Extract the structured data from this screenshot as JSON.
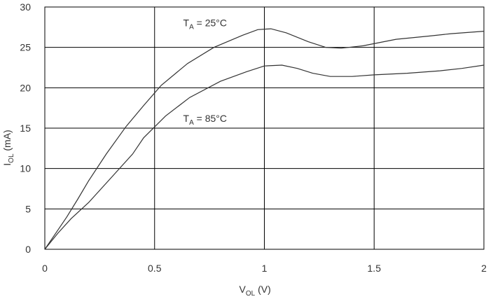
{
  "chart_data": {
    "type": "line",
    "xlabel": {
      "main": "V",
      "sub": "OL",
      "unit": " (V)"
    },
    "ylabel": {
      "main": "I",
      "sub": "OL",
      "unit": " (mA)"
    },
    "xlim": [
      0,
      2
    ],
    "ylim": [
      0,
      30
    ],
    "xticks": [
      0,
      0.5,
      1,
      1.5,
      2
    ],
    "xtick_labels": [
      "0",
      "0.5",
      "1",
      "1.5",
      "2"
    ],
    "yticks": [
      0,
      5,
      10,
      15,
      20,
      25,
      30
    ],
    "ytick_labels": [
      "0",
      "5",
      "10",
      "15",
      "20",
      "25",
      "30"
    ],
    "grid": true,
    "line_color": "#333333",
    "series": [
      {
        "x": [
          0,
          0.05,
          0.1,
          0.15,
          0.2,
          0.28,
          0.37,
          0.45,
          0.53,
          0.65,
          0.77,
          0.9,
          0.97,
          1.03,
          1.1,
          1.2,
          1.28,
          1.35,
          1.45,
          1.6,
          1.75,
          1.85,
          2.0
        ],
        "y": [
          0,
          2.0,
          4.0,
          6.2,
          8.5,
          11.8,
          15.2,
          17.8,
          20.3,
          23.0,
          25.0,
          26.5,
          27.2,
          27.3,
          26.8,
          25.7,
          25.0,
          24.9,
          25.2,
          26.0,
          26.4,
          26.7,
          27.0
        ]
      },
      {
        "x": [
          0,
          0.06,
          0.12,
          0.2,
          0.3,
          0.4,
          0.45,
          0.55,
          0.66,
          0.8,
          0.92,
          1.0,
          1.08,
          1.15,
          1.22,
          1.3,
          1.4,
          1.5,
          1.65,
          1.8,
          1.9,
          2.0
        ],
        "y": [
          0,
          2.0,
          3.8,
          5.8,
          8.8,
          11.8,
          13.8,
          16.5,
          18.8,
          20.8,
          22.0,
          22.7,
          22.8,
          22.4,
          21.8,
          21.4,
          21.4,
          21.6,
          21.8,
          22.1,
          22.4,
          22.8
        ]
      }
    ],
    "annotations": [
      {
        "main": "T",
        "sub": "A",
        "rest": " = 25°C",
        "x": 0.63,
        "y": 27.6
      },
      {
        "main": "T",
        "sub": "A",
        "rest": " = 85°C",
        "x": 0.63,
        "y": 15.8
      }
    ]
  }
}
